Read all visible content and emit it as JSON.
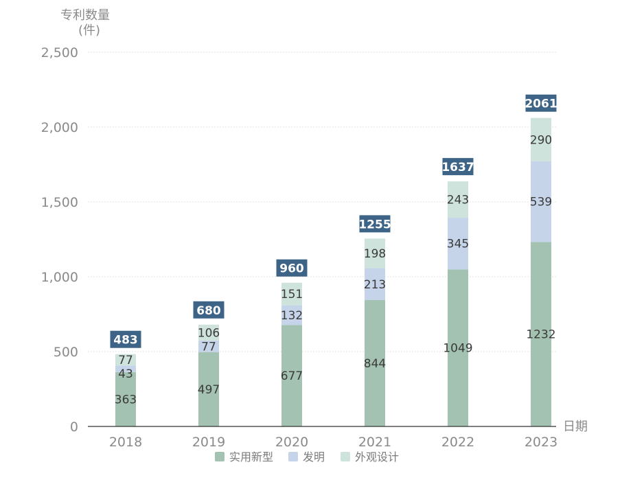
{
  "chart_data": {
    "type": "bar",
    "stacked": true,
    "ylabel_line1": "专利数量",
    "ylabel_line2": "(件)",
    "xlabel": "日期",
    "categories": [
      "2018",
      "2019",
      "2020",
      "2021",
      "2022",
      "2023"
    ],
    "ylim": [
      0,
      2500
    ],
    "yticks": [
      0,
      500,
      1000,
      1500,
      2000,
      2500
    ],
    "ytick_labels": [
      "0",
      "500",
      "1,000",
      "1,500",
      "2,000",
      "2,500"
    ],
    "grid": true,
    "legend_position": "bottom",
    "series": [
      {
        "name": "实用新型",
        "values": [
          363,
          497,
          677,
          844,
          1049,
          1232
        ],
        "color": "#a3c2b1"
      },
      {
        "name": "发明",
        "values": [
          43,
          77,
          132,
          213,
          345,
          539
        ],
        "color": "#c6d4ea"
      },
      {
        "name": "外观设计",
        "values": [
          77,
          106,
          151,
          198,
          243,
          290
        ],
        "color": "#cfe3dd"
      }
    ],
    "totals": [
      483,
      680,
      960,
      1255,
      1637,
      2061
    ],
    "total_badge_color": "#3d6487"
  }
}
